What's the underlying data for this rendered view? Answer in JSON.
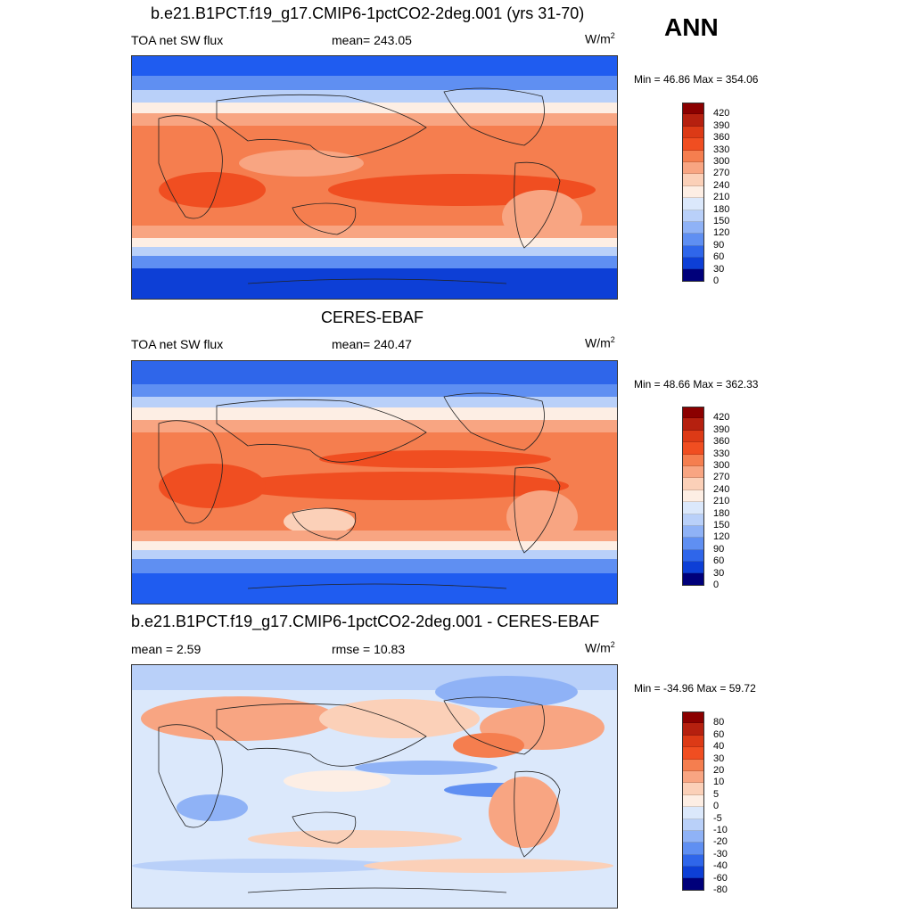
{
  "ann_label": "ANN",
  "panels": [
    {
      "title": "b.e21.B1PCT.f19_g17.CMIP6-1pctCO2-2deg.001 (yrs 31-70)",
      "left_label": "TOA net SW flux",
      "center_label": "mean= 243.05",
      "unit": "W/m",
      "unit_sup": "2",
      "minmax": "Min =  46.86 Max = 354.06",
      "colorbar_ticks": [
        "420",
        "390",
        "360",
        "330",
        "300",
        "270",
        "240",
        "210",
        "180",
        "150",
        "120",
        "90",
        "60",
        "30",
        "0"
      ],
      "map_type": "absolute"
    },
    {
      "title": "CERES-EBAF",
      "left_label": "TOA net SW flux",
      "center_label": "mean= 240.47",
      "unit": "W/m",
      "unit_sup": "2",
      "minmax": "Min =  48.66 Max = 362.33",
      "colorbar_ticks": [
        "420",
        "390",
        "360",
        "330",
        "300",
        "270",
        "240",
        "210",
        "180",
        "150",
        "120",
        "90",
        "60",
        "30",
        "0"
      ],
      "map_type": "absolute"
    },
    {
      "title": "b.e21.B1PCT.f19_g17.CMIP6-1pctCO2-2deg.001 - CERES-EBAF",
      "left_label": "mean =   2.59",
      "center_label": "rmse =  10.83",
      "unit": "W/m",
      "unit_sup": "2",
      "minmax": "Min = -34.96 Max =  59.72",
      "colorbar_ticks": [
        "80",
        "60",
        "40",
        "30",
        "20",
        "10",
        "5",
        "0",
        "-5",
        "-10",
        "-20",
        "-30",
        "-40",
        "-60",
        "-80"
      ],
      "map_type": "difference"
    }
  ],
  "colors": {
    "colorbar": [
      "#8b0000",
      "#b5200f",
      "#dc3a16",
      "#f04e21",
      "#f57e4f",
      "#f8a582",
      "#fbd0b8",
      "#fdeee4",
      "#dbe8fb",
      "#b9d0f9",
      "#8fb2f6",
      "#5f8ff2",
      "#2f66ea",
      "#0d3fd6",
      "#00007a"
    ]
  }
}
